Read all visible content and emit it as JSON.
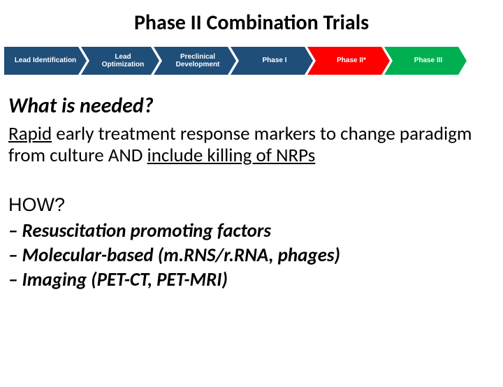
{
  "title": "Phase II Combination Trials",
  "chevrons": [
    {
      "label": "Lead Identification",
      "bg": "#1f4e79",
      "width": 118
    },
    {
      "label": "Lead\nOptimization",
      "bg": "#1f4e79",
      "width": 112
    },
    {
      "label": "Preclinical\nDevelopment",
      "bg": "#1f4e79",
      "width": 118
    },
    {
      "label": "Phase I",
      "bg": "#1f4e79",
      "width": 118
    },
    {
      "label": "Phase II*",
      "bg": "#ff0000",
      "width": 118
    },
    {
      "label": "Phase III",
      "bg": "#00b050",
      "width": 118
    }
  ],
  "subheading": "What is needed?",
  "paragraph": {
    "prefix_underlined": "Rapid",
    "mid": " early treatment response markers to change paradigm from culture AND ",
    "suffix_underlined": "include killing of NRPs"
  },
  "how_label": "HOW?",
  "bullets": [
    "– Resuscitation promoting factors",
    "– Molecular-based (m.RNS/r.RNA, phages)",
    "– Imaging (PET-CT, PET-MRI)"
  ]
}
